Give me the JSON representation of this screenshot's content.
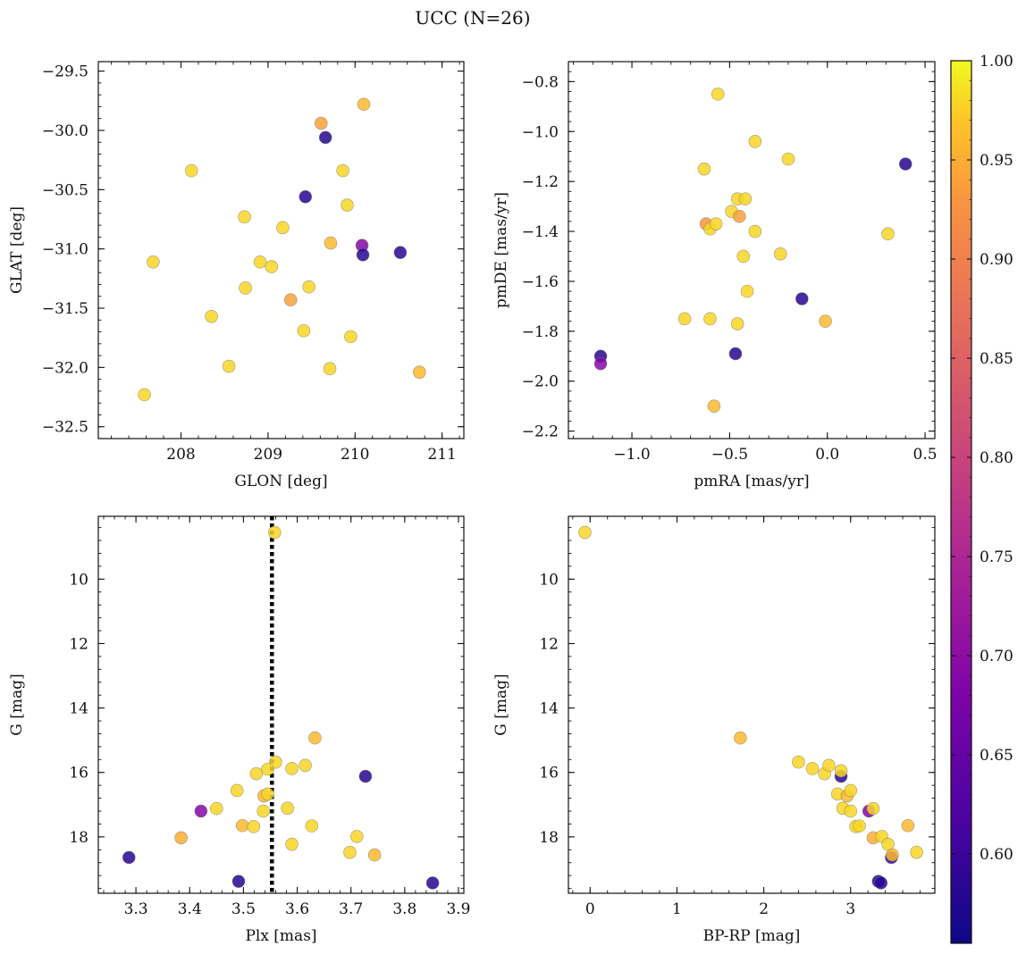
{
  "title": "UCC (N=26)",
  "colorbar": {
    "ticks": [
      0.6,
      0.65,
      0.7,
      0.75,
      0.8,
      0.85,
      0.9,
      0.95,
      1.0
    ],
    "tick_labels": [
      "0.60",
      "0.65",
      "0.70",
      "0.75",
      "0.80",
      "0.85",
      "0.90",
      "0.95",
      "1.00"
    ],
    "range": [
      0.555,
      1.0
    ],
    "colormap": "plasma"
  },
  "chart_data": [
    {
      "type": "scatter",
      "xlabel": "GLON [deg]",
      "ylabel": "GLAT [deg]",
      "xlim": [
        207.05,
        211.25
      ],
      "ylim": [
        -32.6,
        -29.42
      ],
      "xticks": [
        208,
        209,
        210,
        211
      ],
      "xtick_labels": [
        "208",
        "209",
        "210",
        "211"
      ],
      "yticks": [
        -32.5,
        -32.0,
        -31.5,
        -31.0,
        -30.5,
        -30.0,
        -29.5
      ],
      "ytick_labels": [
        "−32.5",
        "−32.0",
        "−31.5",
        "−31.0",
        "−30.5",
        "−30.0",
        "−29.5"
      ],
      "y_inverted": false,
      "points": [
        {
          "x": 207.58,
          "y": -32.23,
          "c": 0.98
        },
        {
          "x": 207.68,
          "y": -31.11,
          "c": 0.98
        },
        {
          "x": 208.12,
          "y": -30.34,
          "c": 0.98
        },
        {
          "x": 208.35,
          "y": -31.57,
          "c": 0.98
        },
        {
          "x": 208.55,
          "y": -31.99,
          "c": 0.98
        },
        {
          "x": 208.73,
          "y": -30.73,
          "c": 0.98
        },
        {
          "x": 208.74,
          "y": -31.33,
          "c": 0.98
        },
        {
          "x": 208.91,
          "y": -31.11,
          "c": 0.98
        },
        {
          "x": 209.04,
          "y": -31.15,
          "c": 0.98
        },
        {
          "x": 209.17,
          "y": -30.82,
          "c": 0.98
        },
        {
          "x": 209.26,
          "y": -31.43,
          "c": 0.94
        },
        {
          "x": 209.41,
          "y": -31.69,
          "c": 0.98
        },
        {
          "x": 209.43,
          "y": -30.56,
          "c": 0.58
        },
        {
          "x": 209.47,
          "y": -31.32,
          "c": 0.98
        },
        {
          "x": 209.61,
          "y": -29.94,
          "c": 0.94
        },
        {
          "x": 209.66,
          "y": -30.06,
          "c": 0.58
        },
        {
          "x": 209.71,
          "y": -32.01,
          "c": 0.98
        },
        {
          "x": 209.72,
          "y": -30.95,
          "c": 0.96
        },
        {
          "x": 209.86,
          "y": -30.34,
          "c": 0.98
        },
        {
          "x": 209.91,
          "y": -30.63,
          "c": 0.98
        },
        {
          "x": 209.95,
          "y": -31.74,
          "c": 0.98
        },
        {
          "x": 210.08,
          "y": -30.97,
          "c": 0.69
        },
        {
          "x": 210.09,
          "y": -31.05,
          "c": 0.58
        },
        {
          "x": 210.1,
          "y": -29.78,
          "c": 0.96
        },
        {
          "x": 210.52,
          "y": -31.03,
          "c": 0.58
        },
        {
          "x": 210.74,
          "y": -32.04,
          "c": 0.96
        }
      ]
    },
    {
      "type": "scatter",
      "xlabel": "pmRA [mas/yr]",
      "ylabel": "pmDE [mas/yr]",
      "xlim": [
        -1.325,
        0.55
      ],
      "ylim": [
        -2.23,
        -0.72
      ],
      "xticks": [
        -1.0,
        -0.5,
        0.0,
        0.5
      ],
      "xtick_labels": [
        "−1.0",
        "−0.5",
        "0.0",
        "0.5"
      ],
      "yticks": [
        -2.2,
        -2.0,
        -1.8,
        -1.6,
        -1.4,
        -1.2,
        -1.0,
        -0.8
      ],
      "ytick_labels": [
        "−2.2",
        "−2.0",
        "−1.8",
        "−1.6",
        "−1.4",
        "−1.2",
        "−1.0",
        "−0.8"
      ],
      "y_inverted": false,
      "points": [
        {
          "x": -1.16,
          "y": -1.9,
          "c": 0.58
        },
        {
          "x": -1.16,
          "y": -1.93,
          "c": 0.69
        },
        {
          "x": -0.73,
          "y": -1.75,
          "c": 0.98
        },
        {
          "x": -0.63,
          "y": -1.15,
          "c": 0.98
        },
        {
          "x": -0.62,
          "y": -1.37,
          "c": 0.93
        },
        {
          "x": -0.6,
          "y": -1.75,
          "c": 0.98
        },
        {
          "x": -0.6,
          "y": -1.39,
          "c": 0.98
        },
        {
          "x": -0.58,
          "y": -2.1,
          "c": 0.96
        },
        {
          "x": -0.57,
          "y": -1.37,
          "c": 0.98
        },
        {
          "x": -0.56,
          "y": -0.85,
          "c": 0.98
        },
        {
          "x": -0.49,
          "y": -1.32,
          "c": 0.98
        },
        {
          "x": -0.47,
          "y": -1.89,
          "c": 0.58
        },
        {
          "x": -0.46,
          "y": -1.27,
          "c": 0.98
        },
        {
          "x": -0.46,
          "y": -1.77,
          "c": 0.98
        },
        {
          "x": -0.45,
          "y": -1.34,
          "c": 0.94
        },
        {
          "x": -0.43,
          "y": -1.5,
          "c": 0.98
        },
        {
          "x": -0.42,
          "y": -1.27,
          "c": 0.98
        },
        {
          "x": -0.41,
          "y": -1.64,
          "c": 0.98
        },
        {
          "x": -0.37,
          "y": -1.04,
          "c": 0.98
        },
        {
          "x": -0.37,
          "y": -1.4,
          "c": 0.98
        },
        {
          "x": -0.24,
          "y": -1.49,
          "c": 0.98
        },
        {
          "x": -0.2,
          "y": -1.11,
          "c": 0.98
        },
        {
          "x": -0.13,
          "y": -1.67,
          "c": 0.58
        },
        {
          "x": -0.01,
          "y": -1.76,
          "c": 0.96
        },
        {
          "x": 0.31,
          "y": -1.41,
          "c": 0.98
        },
        {
          "x": 0.4,
          "y": -1.13,
          "c": 0.58
        }
      ]
    },
    {
      "type": "scatter",
      "xlabel": "Plx [mas]",
      "ylabel": "G [mag]",
      "xlim": [
        3.23,
        3.91
      ],
      "ylim": [
        19.75,
        8.05
      ],
      "xticks": [
        3.3,
        3.4,
        3.5,
        3.6,
        3.7,
        3.8,
        3.9
      ],
      "xtick_labels": [
        "3.3",
        "3.4",
        "3.5",
        "3.6",
        "3.7",
        "3.8",
        "3.9"
      ],
      "yticks": [
        10,
        12,
        14,
        16,
        18
      ],
      "ytick_labels": [
        "10",
        "12",
        "14",
        "16",
        "18"
      ],
      "y_inverted": true,
      "vline": {
        "x": 3.553,
        "style": "dotted"
      },
      "points": [
        {
          "x": 3.558,
          "y": 8.55,
          "c": 0.98
        },
        {
          "x": 3.633,
          "y": 14.93,
          "c": 0.96
        },
        {
          "x": 3.56,
          "y": 15.68,
          "c": 0.98
        },
        {
          "x": 3.615,
          "y": 15.78,
          "c": 0.98
        },
        {
          "x": 3.59,
          "y": 15.88,
          "c": 0.98
        },
        {
          "x": 3.545,
          "y": 15.9,
          "c": 0.98
        },
        {
          "x": 3.524,
          "y": 16.04,
          "c": 0.98
        },
        {
          "x": 3.727,
          "y": 16.12,
          "c": 0.58
        },
        {
          "x": 3.488,
          "y": 16.56,
          "c": 0.98
        },
        {
          "x": 3.538,
          "y": 16.73,
          "c": 0.96
        },
        {
          "x": 3.545,
          "y": 16.67,
          "c": 0.98
        },
        {
          "x": 3.582,
          "y": 17.11,
          "c": 0.98
        },
        {
          "x": 3.45,
          "y": 17.12,
          "c": 0.98
        },
        {
          "x": 3.537,
          "y": 17.2,
          "c": 0.98
        },
        {
          "x": 3.421,
          "y": 17.2,
          "c": 0.69
        },
        {
          "x": 3.498,
          "y": 17.65,
          "c": 0.96
        },
        {
          "x": 3.519,
          "y": 17.68,
          "c": 0.98
        },
        {
          "x": 3.627,
          "y": 17.66,
          "c": 0.98
        },
        {
          "x": 3.384,
          "y": 18.03,
          "c": 0.95
        },
        {
          "x": 3.711,
          "y": 17.99,
          "c": 0.98
        },
        {
          "x": 3.59,
          "y": 18.23,
          "c": 0.98
        },
        {
          "x": 3.698,
          "y": 18.48,
          "c": 0.98
        },
        {
          "x": 3.744,
          "y": 18.56,
          "c": 0.96
        },
        {
          "x": 3.287,
          "y": 18.64,
          "c": 0.58
        },
        {
          "x": 3.491,
          "y": 19.38,
          "c": 0.58
        },
        {
          "x": 3.852,
          "y": 19.43,
          "c": 0.58
        }
      ]
    },
    {
      "type": "scatter",
      "xlabel": "BP-RP [mag]",
      "ylabel": "G [mag]",
      "xlim": [
        -0.25,
        3.97
      ],
      "ylim": [
        19.75,
        8.05
      ],
      "xticks": [
        0,
        1,
        2,
        3
      ],
      "xtick_labels": [
        "0",
        "1",
        "2",
        "3"
      ],
      "yticks": [
        10,
        12,
        14,
        16,
        18
      ],
      "ytick_labels": [
        "10",
        "12",
        "14",
        "16",
        "18"
      ],
      "y_inverted": true,
      "points": [
        {
          "x": -0.06,
          "y": 8.55,
          "c": 0.98
        },
        {
          "x": 1.73,
          "y": 14.93,
          "c": 0.96
        },
        {
          "x": 2.4,
          "y": 15.68,
          "c": 0.98
        },
        {
          "x": 2.56,
          "y": 15.88,
          "c": 0.98
        },
        {
          "x": 2.7,
          "y": 16.04,
          "c": 0.98
        },
        {
          "x": 2.75,
          "y": 15.78,
          "c": 0.98
        },
        {
          "x": 2.89,
          "y": 16.12,
          "c": 0.58
        },
        {
          "x": 2.89,
          "y": 15.95,
          "c": 0.98
        },
        {
          "x": 2.85,
          "y": 16.67,
          "c": 0.98
        },
        {
          "x": 2.96,
          "y": 16.73,
          "c": 0.96
        },
        {
          "x": 3.0,
          "y": 16.56,
          "c": 0.98
        },
        {
          "x": 2.91,
          "y": 17.11,
          "c": 0.98
        },
        {
          "x": 3.0,
          "y": 17.2,
          "c": 0.98
        },
        {
          "x": 3.21,
          "y": 17.2,
          "c": 0.69
        },
        {
          "x": 3.26,
          "y": 17.12,
          "c": 0.98
        },
        {
          "x": 3.06,
          "y": 17.68,
          "c": 0.98
        },
        {
          "x": 3.1,
          "y": 17.66,
          "c": 0.98
        },
        {
          "x": 3.26,
          "y": 18.03,
          "c": 0.95
        },
        {
          "x": 3.36,
          "y": 17.99,
          "c": 0.98
        },
        {
          "x": 3.43,
          "y": 18.23,
          "c": 0.98
        },
        {
          "x": 3.47,
          "y": 18.64,
          "c": 0.58
        },
        {
          "x": 3.48,
          "y": 18.56,
          "c": 0.96
        },
        {
          "x": 3.66,
          "y": 17.65,
          "c": 0.96
        },
        {
          "x": 3.76,
          "y": 18.48,
          "c": 0.98
        },
        {
          "x": 3.32,
          "y": 19.38,
          "c": 0.58
        },
        {
          "x": 3.35,
          "y": 19.43,
          "c": 0.58
        }
      ]
    }
  ]
}
